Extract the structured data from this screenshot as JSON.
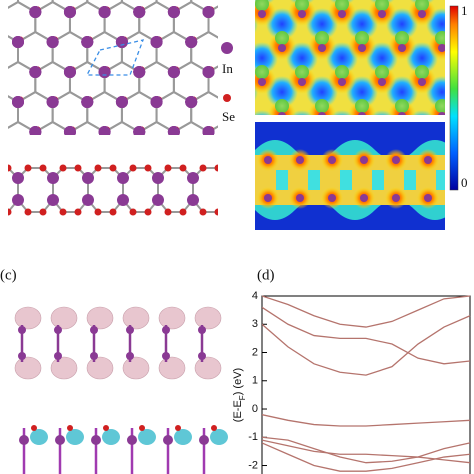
{
  "legend_atoms": [
    "In",
    "Se"
  ],
  "colorbar": {
    "max_label": "1",
    "min_label": "0"
  },
  "panel_labels": [
    "(c)",
    "(d)"
  ],
  "chart_data": {
    "type": "line",
    "y_label": [
      "(E-E",
      "F",
      ") (eV)"
    ],
    "categories": [
      null,
      null,
      null,
      null,
      null,
      null,
      null,
      null,
      null
    ],
    "ylim": [
      -2.3,
      4
    ],
    "yticks": [
      4,
      3,
      2,
      1,
      0,
      -1,
      -2
    ],
    "series": [
      {
        "color": "#b5746d",
        "values": [
          3.0,
          2.2,
          1.6,
          1.3,
          1.2,
          1.5,
          2.3,
          2.9,
          3.3
        ]
      },
      {
        "color": "#b5746d",
        "values": [
          3.6,
          3.0,
          2.6,
          2.5,
          2.5,
          2.3,
          1.8,
          1.6,
          1.7
        ]
      },
      {
        "color": "#b5746d",
        "values": [
          4.0,
          3.7,
          3.3,
          3.0,
          2.9,
          3.1,
          3.5,
          3.9,
          4.0
        ]
      },
      {
        "color": "#b5746d",
        "values": [
          -0.2,
          -0.4,
          -0.55,
          -0.6,
          -0.6,
          -0.55,
          -0.5,
          -0.45,
          -0.4
        ]
      },
      {
        "color": "#b5746d",
        "values": [
          -1.0,
          -1.1,
          -1.4,
          -1.7,
          -1.9,
          -1.85,
          -1.7,
          -1.4,
          -1.2
        ]
      },
      {
        "color": "#b5746d",
        "values": [
          -1.1,
          -1.3,
          -1.5,
          -1.6,
          -1.6,
          -1.65,
          -1.7,
          -1.8,
          -1.9
        ]
      },
      {
        "color": "#b5746d",
        "values": [
          -1.2,
          -1.6,
          -2.0,
          -2.2,
          -2.2,
          -2.1,
          -1.9,
          -1.7,
          -1.6
        ]
      }
    ]
  }
}
